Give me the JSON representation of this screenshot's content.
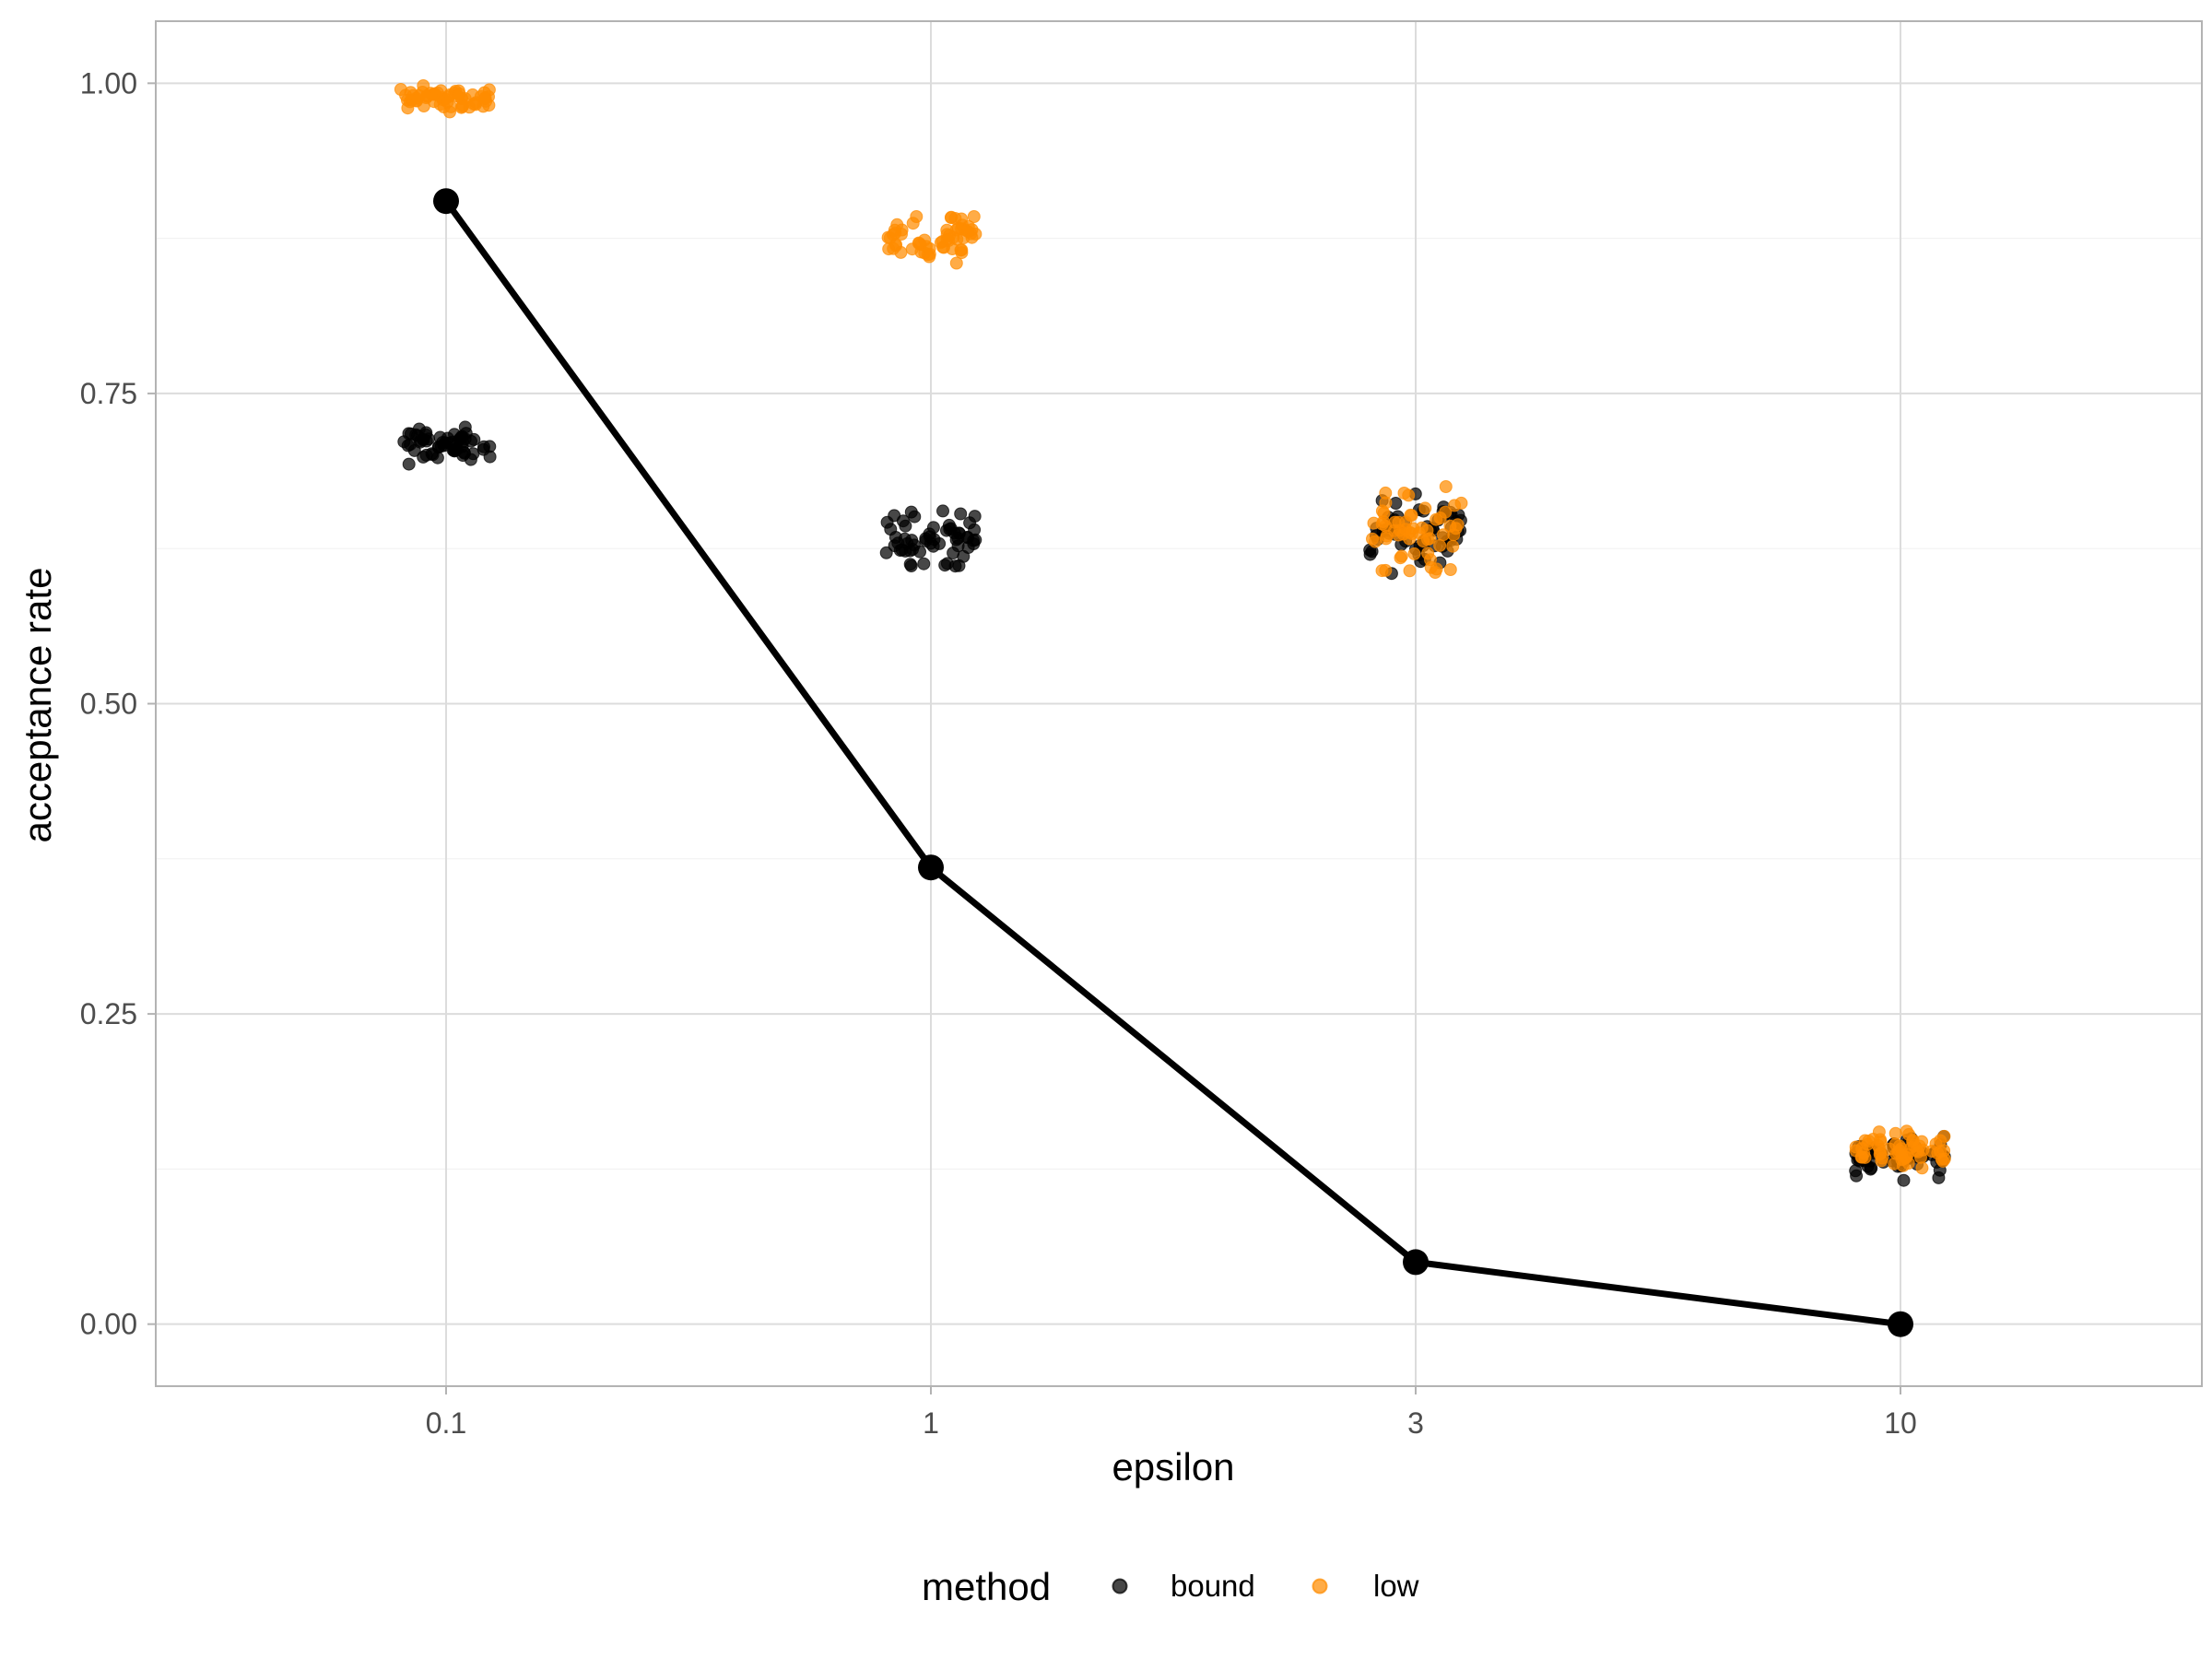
{
  "chart_data": {
    "type": "scatter",
    "xlabel": "epsilon",
    "ylabel": "acceptance rate",
    "categories": [
      "0.1",
      "1",
      "3",
      "10"
    ],
    "ylim": [
      -0.05,
      1.05
    ],
    "y_ticks": [
      "0.00",
      "0.25",
      "0.50",
      "0.75",
      "1.00"
    ],
    "grid": true,
    "legend": {
      "title": "method",
      "position": "bottom",
      "entries": [
        {
          "name": "bound",
          "color": "#000000"
        },
        {
          "name": "low",
          "color": "#ff8c00"
        }
      ]
    },
    "series": [
      {
        "name": "bound",
        "kind": "jittered-points",
        "color": "#000000",
        "opacity": 0.72,
        "groups": [
          {
            "x": "0.1",
            "center": 0.708,
            "spread": 0.02,
            "count": 60
          },
          {
            "x": "1",
            "center": 0.633,
            "spread": 0.032,
            "count": 60
          },
          {
            "x": "3",
            "center": 0.637,
            "spread": 0.04,
            "count": 60
          },
          {
            "x": "10",
            "center": 0.136,
            "spread": 0.024,
            "count": 60
          }
        ]
      },
      {
        "name": "low",
        "kind": "jittered-points",
        "color": "#ff8c00",
        "opacity": 0.72,
        "groups": [
          {
            "x": "0.1",
            "center": 0.988,
            "spread": 0.013,
            "count": 60
          },
          {
            "x": "1",
            "center": 0.876,
            "spread": 0.026,
            "count": 60
          },
          {
            "x": "3",
            "center": 0.64,
            "spread": 0.045,
            "count": 60
          },
          {
            "x": "10",
            "center": 0.14,
            "spread": 0.02,
            "count": 60
          }
        ]
      },
      {
        "kind": "line",
        "color": "#000000",
        "values": [
          0.905,
          0.368,
          0.05,
          0.0
        ]
      }
    ]
  }
}
